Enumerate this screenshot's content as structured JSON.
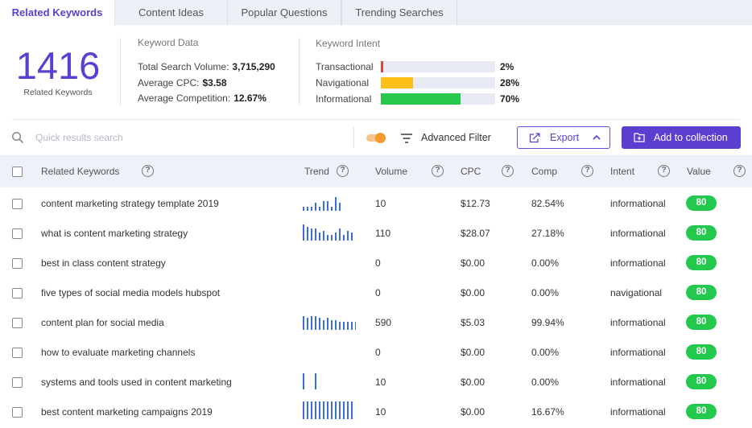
{
  "tabs": [
    {
      "label": "Related Keywords",
      "active": true
    },
    {
      "label": "Content Ideas",
      "active": false
    },
    {
      "label": "Popular Questions",
      "active": false
    },
    {
      "label": "Trending Searches",
      "active": false
    }
  ],
  "summary": {
    "count": "1416",
    "count_label": "Related Keywords",
    "keyword_data": {
      "title": "Keyword Data",
      "items": [
        {
          "label": "Total Search Volume:",
          "value": "3,715,290"
        },
        {
          "label": "Average CPC:",
          "value": "$3.58"
        },
        {
          "label": "Average Competition:",
          "value": "12.67%"
        }
      ]
    },
    "keyword_intent": {
      "title": "Keyword Intent",
      "items": [
        {
          "label": "Transactional",
          "value": "2%",
          "percent": 2,
          "color": "#e0463b"
        },
        {
          "label": "Navigational",
          "value": "28%",
          "percent": 28,
          "color": "#fbbf18"
        },
        {
          "label": "Informational",
          "value": "70%",
          "percent": 70,
          "color": "#26c949"
        }
      ]
    }
  },
  "toolbar": {
    "search_placeholder": "Quick results search",
    "toggle_on": true,
    "filter_label": "Advanced Filter",
    "export_label": "Export",
    "add_label": "Add to collection"
  },
  "colors": {
    "accent": "#5b3fd1",
    "value_badge": "#23c94c",
    "trend_bar": "#3d6fd8"
  },
  "table": {
    "headers": {
      "keyword": "Related Keywords",
      "trend": "Trend",
      "volume": "Volume",
      "cpc": "CPC",
      "comp": "Comp",
      "intent": "Intent",
      "value": "Value"
    },
    "rows": [
      {
        "keyword": "content marketing strategy template 2019",
        "trend": [
          2,
          2,
          2,
          4,
          2,
          5,
          5,
          2,
          7,
          4
        ],
        "volume": "10",
        "cpc": "$12.73",
        "comp": "82.54%",
        "intent": "informational",
        "value": "80"
      },
      {
        "keyword": "what is content marketing strategy",
        "trend": [
          8,
          7,
          6,
          6,
          4,
          5,
          3,
          3,
          4,
          6,
          3,
          5,
          4
        ],
        "volume": "110",
        "cpc": "$28.07",
        "comp": "27.18%",
        "intent": "informational",
        "value": "80"
      },
      {
        "keyword": "best in class content strategy",
        "trend": [],
        "volume": "0",
        "cpc": "$0.00",
        "comp": "0.00%",
        "intent": "informational",
        "value": "80"
      },
      {
        "keyword": "five types of social media models hubspot",
        "trend": [],
        "volume": "0",
        "cpc": "$0.00",
        "comp": "0.00%",
        "intent": "navigational",
        "value": "80"
      },
      {
        "keyword": "content plan for social media",
        "trend": [
          7,
          6,
          7,
          7,
          6,
          5,
          6,
          5,
          5,
          4,
          4,
          4,
          4,
          4
        ],
        "volume": "590",
        "cpc": "$5.03",
        "comp": "99.94%",
        "intent": "informational",
        "value": "80"
      },
      {
        "keyword": "how to evaluate marketing channels",
        "trend": [],
        "volume": "0",
        "cpc": "$0.00",
        "comp": "0.00%",
        "intent": "informational",
        "value": "80"
      },
      {
        "keyword": "systems and tools used in content marketing",
        "trend": [
          8,
          0,
          0,
          8
        ],
        "volume": "10",
        "cpc": "$0.00",
        "comp": "0.00%",
        "intent": "informational",
        "value": "80"
      },
      {
        "keyword": "best content marketing campaigns 2019",
        "trend": [
          9,
          9,
          9,
          9,
          9,
          9,
          9,
          9,
          9,
          9,
          9,
          9,
          9
        ],
        "volume": "10",
        "cpc": "$0.00",
        "comp": "16.67%",
        "intent": "informational",
        "value": "80"
      }
    ]
  }
}
